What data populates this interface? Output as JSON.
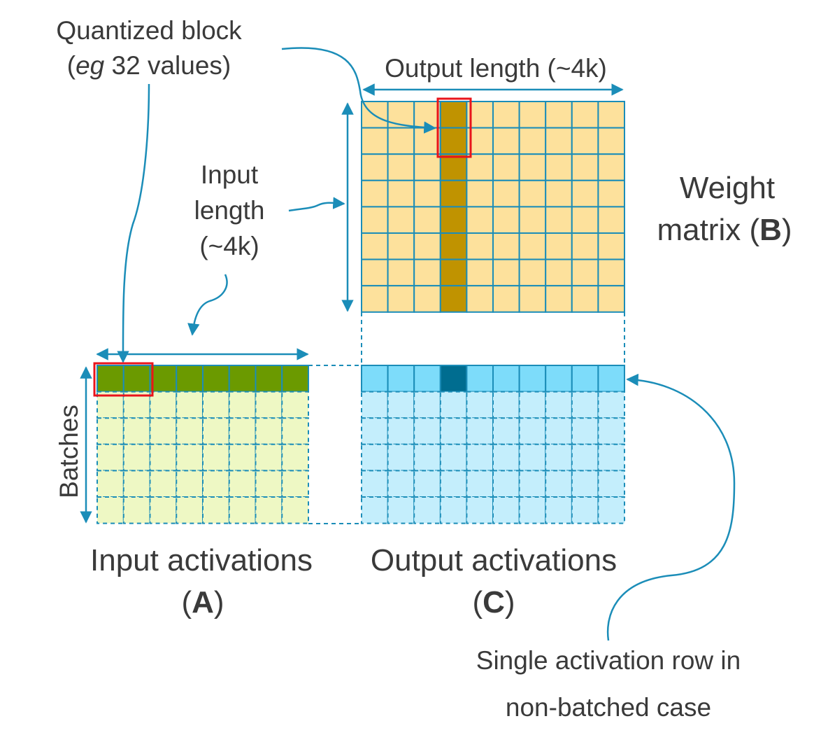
{
  "labels": {
    "quantized_block_line1": "Quantized block",
    "quantized_block_eg": "eg",
    "quantized_block_rest": " 32 values)",
    "quantized_block_open": "(",
    "output_length": "Output length (~4k)",
    "input_length_line1": "Input",
    "input_length_line2": "length",
    "input_length_line3": "(~4k)",
    "weight_matrix_line1": "Weight",
    "weight_matrix_line2": "matrix (",
    "weight_matrix_letter": "B",
    "weight_matrix_close": ")",
    "batches": "Batches",
    "input_activations": "Input activations",
    "input_activations_letter": "A",
    "output_activations": "Output activations",
    "output_activations_letter": "C",
    "single_row_line1": "Single activation row in",
    "single_row_line2": "non-batched case",
    "paren_open": "(",
    "paren_close": ")"
  },
  "colors": {
    "grid_line": "#1b8db8",
    "arrow": "#1b8db8",
    "weight_fill": "#fde19c",
    "weight_highlight_column": "#c09300",
    "input_active_row": "#6b9a00",
    "input_batch_fill": "#eef8c4",
    "output_active_row": "#7ddcfa",
    "output_active_cell": "#006d90",
    "output_batch_fill": "#c4eefc",
    "highlight_box": "#e8141b",
    "text": "#3a3a3a"
  },
  "grids": {
    "weight_matrix": {
      "rows": 8,
      "cols": 10,
      "highlight_col": 3
    },
    "input_activations": {
      "active_row_cells": 8,
      "batch_rows": 5
    },
    "output_activations": {
      "active_row_cells": 10,
      "batch_rows": 5,
      "highlight_col": 3
    }
  }
}
